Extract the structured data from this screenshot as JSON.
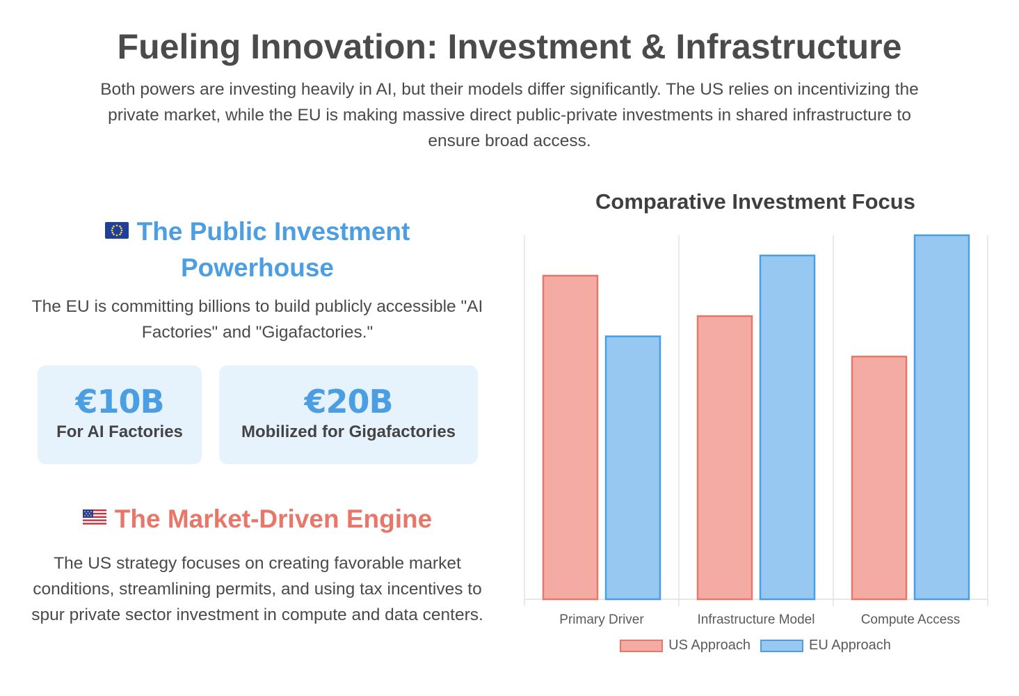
{
  "header": {
    "title": "Fueling Innovation: Investment & Infrastructure",
    "intro": "Both powers are investing heavily in AI, but their models differ significantly. The US relies on incentivizing the private market, while the EU is making massive direct public-private investments in shared infrastructure to ensure broad access."
  },
  "eu_section": {
    "flag_icon": "eu-flag-icon",
    "heading": "The Public Investment Powerhouse",
    "text": "The EU is committing billions to build publicly accessible \"AI Factories\" and \"Gigafactories.\"",
    "accent_color": "#4b9ee2",
    "stats": [
      {
        "value": "€10B",
        "label": "For AI Factories"
      },
      {
        "value": "€20B",
        "label": "Mobilized for Gigafactories"
      }
    ]
  },
  "us_section": {
    "flag_icon": "us-flag-icon",
    "heading": "The Market-Driven Engine",
    "text": "The US strategy focuses on creating favorable market conditions, streamlining permits, and using tax incentives to spur private sector investment in compute and data centers.",
    "accent_color": "#e8776a"
  },
  "chart_data": {
    "type": "bar",
    "title": "Comparative Investment Focus",
    "categories": [
      "Primary Driver",
      "Infrastructure Model",
      "Compute Access"
    ],
    "series": [
      {
        "name": "US Approach",
        "values": [
          8,
          7,
          6
        ],
        "fill": "#f4aba3",
        "stroke": "#e8776a"
      },
      {
        "name": "EU Approach",
        "values": [
          6.5,
          8.5,
          9
        ],
        "fill": "#96c8f1",
        "stroke": "#4b9ee2"
      }
    ],
    "ylim": [
      0,
      9
    ],
    "grid": true,
    "legend_position": "bottom"
  }
}
